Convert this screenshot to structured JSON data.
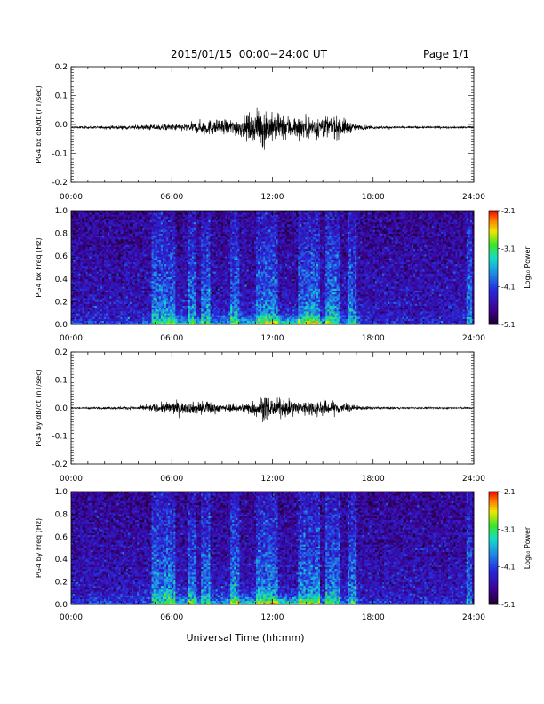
{
  "header": {
    "title": "2015/01/15  00:00−24:00 UT",
    "page": "Page 1/1"
  },
  "xlabel": "Universal Time (hh:mm)",
  "colorbar": {
    "label": "Log₁₀ Power",
    "ticks": [
      "-2.1",
      "-3.1",
      "-4.1",
      "-5.1"
    ],
    "range": [
      -5.1,
      -2.1
    ]
  },
  "chart_data": [
    {
      "type": "line",
      "title": "",
      "ylabel": "PG4 bx dB/dt (nT/sec)",
      "xlabel": "",
      "x_ticks": [
        "00:00",
        "06:00",
        "12:00",
        "18:00",
        "24:00"
      ],
      "xlim": [
        0,
        24
      ],
      "ylim": [
        -0.2,
        0.2
      ],
      "y_ticks": [
        "0.2",
        "0.1",
        "0.0",
        "-0.1",
        "-0.2"
      ],
      "series": [
        {
          "color": "#000000",
          "baseline": -0.01,
          "envelope_hours": [
            0,
            2,
            4,
            5,
            6,
            7,
            8,
            9,
            10,
            11,
            11.5,
            12,
            13,
            14,
            15,
            16,
            17,
            18,
            19,
            20,
            22,
            24
          ],
          "envelope_amplitude": [
            0.004,
            0.005,
            0.008,
            0.012,
            0.012,
            0.015,
            0.03,
            0.025,
            0.035,
            0.055,
            0.08,
            0.05,
            0.045,
            0.04,
            0.045,
            0.04,
            0.01,
            0.006,
            0.005,
            0.004,
            0.004,
            0.004
          ]
        }
      ]
    },
    {
      "type": "heatmap",
      "title": "",
      "ylabel": "PG4 bx Freq (Hz)",
      "xlabel": "",
      "x_ticks": [
        "00:00",
        "06:00",
        "12:00",
        "18:00",
        "24:00"
      ],
      "y_ticks": [
        "1.0",
        "0.8",
        "0.6",
        "0.4",
        "0.2",
        "0.0"
      ],
      "xlim": [
        0,
        24
      ],
      "ylim": [
        0,
        1.0
      ],
      "zlim": [
        -5.1,
        -2.1
      ],
      "zlabel": "Log₁₀ Power",
      "activity_bands_hours": [
        [
          4.8,
          5.3
        ],
        [
          5.4,
          6.2
        ],
        [
          7.0,
          7.4
        ],
        [
          7.8,
          8.3
        ],
        [
          9.5,
          10.0
        ],
        [
          11.0,
          12.3
        ],
        [
          13.5,
          14.8
        ],
        [
          15.2,
          16.0
        ],
        [
          16.5,
          17.0
        ],
        [
          23.6,
          23.9
        ]
      ],
      "low_freq_peak_hours": [
        6,
        12
      ]
    },
    {
      "type": "line",
      "title": "",
      "ylabel": "PG4 by dB/dt (nT/sec)",
      "xlabel": "",
      "x_ticks": [
        "00:00",
        "06:00",
        "12:00",
        "18:00",
        "24:00"
      ],
      "xlim": [
        0,
        24
      ],
      "ylim": [
        -0.2,
        0.2
      ],
      "y_ticks": [
        "0.2",
        "0.1",
        "0.0",
        "-0.1",
        "-0.2"
      ],
      "series": [
        {
          "color": "#000000",
          "baseline": 0.0,
          "envelope_hours": [
            0,
            2,
            4,
            5,
            6,
            7,
            8,
            9,
            10,
            11,
            11.5,
            12,
            13,
            14,
            15,
            16,
            17,
            18,
            19,
            20,
            22,
            24
          ],
          "envelope_amplitude": [
            0.003,
            0.004,
            0.006,
            0.015,
            0.025,
            0.02,
            0.03,
            0.012,
            0.015,
            0.03,
            0.05,
            0.035,
            0.03,
            0.03,
            0.03,
            0.025,
            0.008,
            0.005,
            0.004,
            0.003,
            0.003,
            0.003
          ]
        }
      ]
    },
    {
      "type": "heatmap",
      "title": "",
      "ylabel": "PG4 by Freq (Hz)",
      "xlabel": "",
      "x_ticks": [
        "00:00",
        "06:00",
        "12:00",
        "18:00",
        "24:00"
      ],
      "y_ticks": [
        "1.0",
        "0.8",
        "0.6",
        "0.4",
        "0.2",
        "0.0"
      ],
      "xlim": [
        0,
        24
      ],
      "ylim": [
        0,
        1.0
      ],
      "zlim": [
        -5.1,
        -2.1
      ],
      "zlabel": "Log₁₀ Power",
      "activity_bands_hours": [
        [
          4.8,
          5.3
        ],
        [
          5.4,
          6.2
        ],
        [
          7.0,
          7.4
        ],
        [
          7.8,
          8.3
        ],
        [
          9.5,
          10.0
        ],
        [
          11.0,
          12.3
        ],
        [
          13.5,
          14.8
        ],
        [
          15.2,
          16.0
        ],
        [
          16.5,
          17.0
        ],
        [
          23.6,
          23.9
        ]
      ],
      "low_freq_peak_hours": [
        6,
        12
      ]
    }
  ]
}
